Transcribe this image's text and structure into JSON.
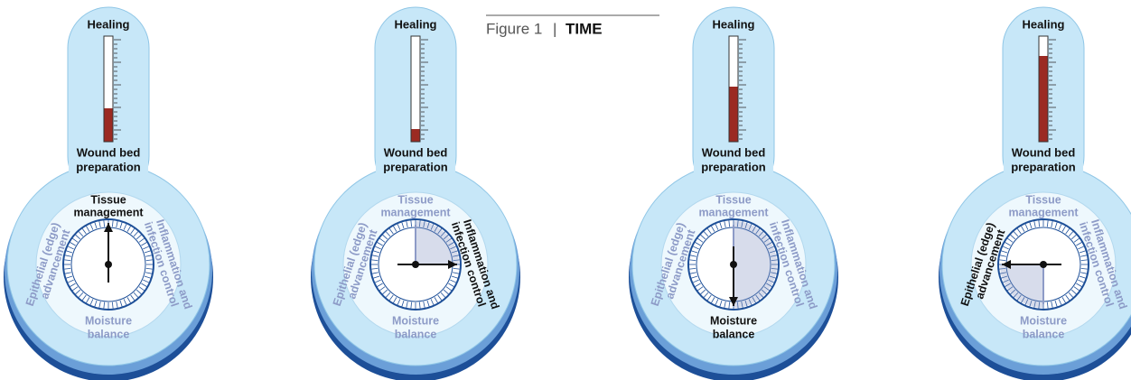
{
  "figure": {
    "label": "Figure 1",
    "separator": "|",
    "title": "TIME"
  },
  "panels": [
    {
      "top_label": "Healing",
      "bottom_label": [
        "Wound bed",
        "preparation"
      ],
      "dial_labels": {
        "top": [
          "Tissue",
          "management"
        ],
        "right": [
          "Inflammation and",
          "infection control"
        ],
        "bottom": [
          "Moisture",
          "balance"
        ],
        "left": [
          "Epithelial (edge)",
          "advancement"
        ]
      }
    },
    {
      "top_label": "Healing",
      "bottom_label": [
        "Wound bed",
        "preparation"
      ],
      "dial_labels": {
        "top": [
          "Tissue",
          "management"
        ],
        "right": [
          "Inflammation and",
          "infection control"
        ],
        "bottom": [
          "Moisture",
          "balance"
        ],
        "left": [
          "Epithelial (edge)",
          "advancement"
        ]
      }
    },
    {
      "top_label": "Healing",
      "bottom_label": [
        "Wound bed",
        "preparation"
      ],
      "dial_labels": {
        "top": [
          "Tissue",
          "management"
        ],
        "right": [
          "Inflammation and",
          "infection control"
        ],
        "bottom": [
          "Moisture",
          "balance"
        ],
        "left": [
          "Epithelial (edge)",
          "advancement"
        ]
      }
    },
    {
      "top_label": "Healing",
      "bottom_label": [
        "Wound bed",
        "preparation"
      ],
      "dial_labels": {
        "top": [
          "Tissue",
          "management"
        ],
        "right": [
          "Inflammation and",
          "infection control"
        ],
        "bottom": [
          "Moisture",
          "balance"
        ],
        "left": [
          "Epithelial (edge)",
          "advancement"
        ]
      }
    }
  ]
}
